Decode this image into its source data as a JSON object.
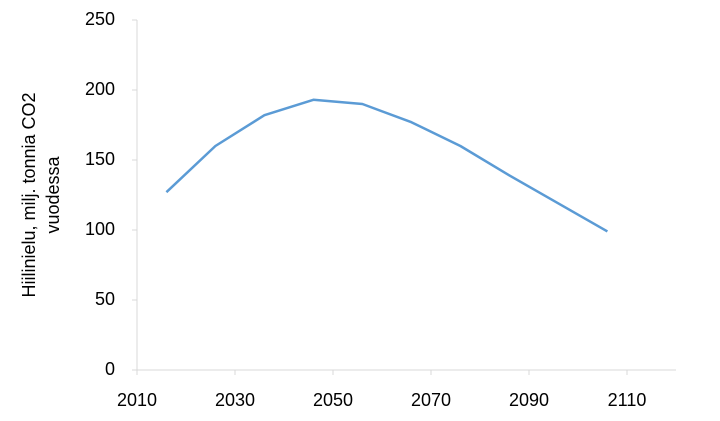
{
  "chart_data": {
    "type": "line",
    "ylabel": [
      "Hiilinielu, milj. tonnia CO2",
      "vuodessa"
    ],
    "x": [
      2016,
      2026,
      2036,
      2046,
      2056,
      2066,
      2076,
      2086,
      2096,
      2106
    ],
    "series": [
      {
        "color": "#5b9bd5",
        "values": [
          127,
          160,
          182,
          193,
          190,
          177,
          160,
          139,
          119,
          99
        ]
      }
    ],
    "xlim": [
      2010,
      2120
    ],
    "xticks": [
      2010,
      2030,
      2050,
      2070,
      2090,
      2110
    ],
    "ylim": [
      0,
      250
    ],
    "yticks": [
      0,
      50,
      100,
      150,
      200,
      250
    ],
    "grid": false
  }
}
